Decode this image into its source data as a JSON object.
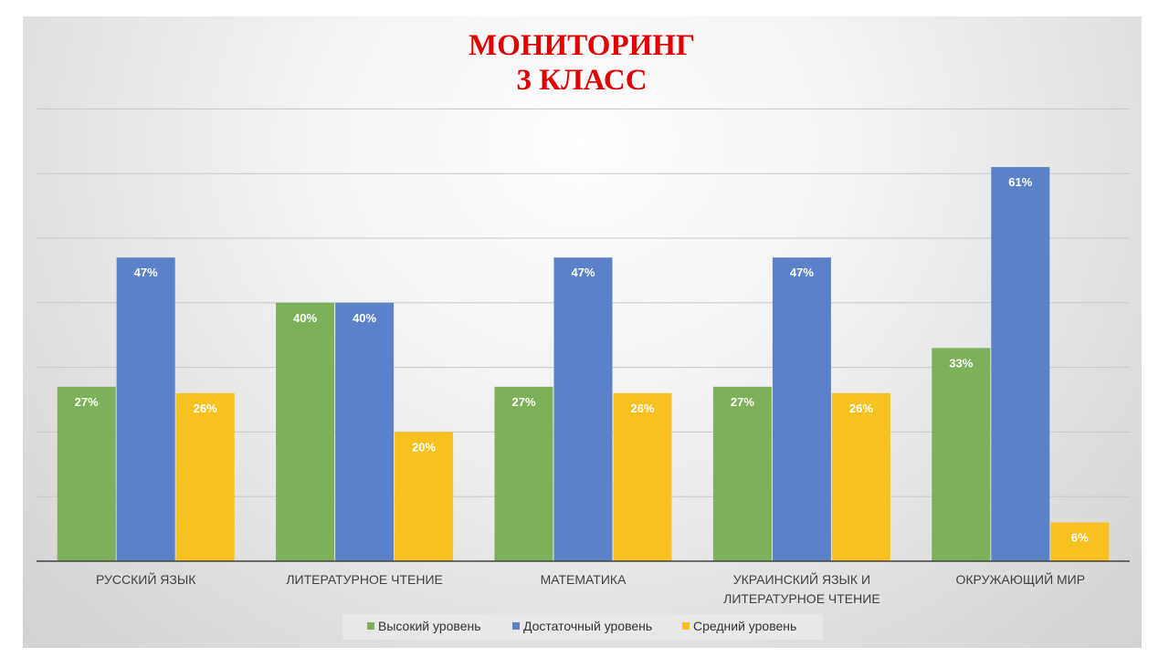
{
  "chart_data": {
    "type": "bar",
    "title": [
      "МОНИТОРИНГ",
      "3 КЛАСС"
    ],
    "categories": [
      [
        "РУССКИЙ ЯЗЫК"
      ],
      [
        "ЛИТЕРАТУРНОЕ ЧТЕНИЕ"
      ],
      [
        "МАТЕМАТИКА"
      ],
      [
        "УКРАИНСКИЙ ЯЗЫК И",
        "ЛИТЕРАТУРНОЕ ЧТЕНИЕ"
      ],
      [
        "ОКРУЖАЮЩИЙ МИР"
      ]
    ],
    "series": [
      {
        "name": "Высокий уровень",
        "color": "#7cb15a",
        "values": [
          27,
          40,
          27,
          27,
          33
        ]
      },
      {
        "name": "Достаточный уровень",
        "color": "#5b82c8",
        "values": [
          47,
          40,
          47,
          47,
          61
        ]
      },
      {
        "name": "Средний уровень",
        "color": "#f7c11f",
        "values": [
          26,
          20,
          26,
          26,
          6
        ]
      }
    ],
    "value_suffix": "%",
    "ylim": [
      0,
      70
    ],
    "grid": true,
    "legend_position": "bottom",
    "title_color": "#e00000"
  }
}
